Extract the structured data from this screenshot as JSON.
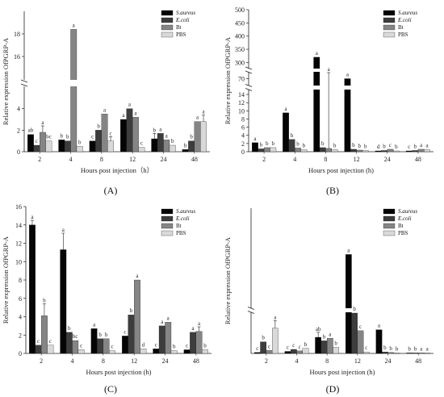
{
  "colors": {
    "S.aureus": "#050505",
    "E.coli": "#3d3d3d",
    "Bt": "#858585",
    "PBS": "#d9d9d9"
  },
  "chart_data": [
    {
      "panel": "A",
      "type": "bar",
      "panel_label": "(A)",
      "xlabel": "Hours post injection（h）",
      "ylabel": "Relative expression OfPGRP-A",
      "categories": [
        "2",
        "4",
        "8",
        "12",
        "24",
        "48"
      ],
      "legend_position": "top-right",
      "axis_break": true,
      "ylim_lower": [
        0,
        6
      ],
      "ylim_upper": [
        14,
        20
      ],
      "yticks_lower": [
        "0",
        "2",
        "4"
      ],
      "yticks_upper": [
        "16",
        "18"
      ],
      "series": [
        {
          "name": "S.aureus",
          "values": [
            1.6,
            1.1,
            1.0,
            3.0,
            1.2,
            0.2
          ],
          "errors": [
            0,
            0,
            0,
            0,
            0.5,
            0
          ],
          "labels": [
            "ab",
            "b",
            "c",
            "a",
            "b",
            "b"
          ]
        },
        {
          "name": "E.coli",
          "values": [
            0.6,
            1.0,
            2.0,
            4.0,
            1.7,
            1.0
          ],
          "errors": [
            0,
            0,
            0,
            0,
            0,
            0
          ],
          "labels": [
            "c",
            "b",
            "b",
            "a",
            "a",
            "b"
          ]
        },
        {
          "name": "Bt",
          "values": [
            1.8,
            18.4,
            3.5,
            3.2,
            1.1,
            2.8
          ],
          "errors": [
            0.6,
            0,
            0,
            0,
            0,
            0
          ],
          "labels": [
            "a",
            "a",
            "a",
            "a",
            "a",
            "a"
          ]
        },
        {
          "name": "PBS",
          "values": [
            1.0,
            0.5,
            1.0,
            0.4,
            0.6,
            2.8
          ],
          "errors": [
            0,
            0,
            0.4,
            0,
            0,
            0.6
          ],
          "labels": [
            "bc",
            "b",
            "c",
            "c",
            "b",
            "a"
          ]
        }
      ]
    },
    {
      "panel": "B",
      "type": "bar",
      "panel_label": "(B)",
      "xlabel": "Hours post injection (h)",
      "ylabel": "Relative expression OfPGRP-A",
      "categories": [
        "2",
        "4",
        "8",
        "12",
        "24",
        "48"
      ],
      "legend_position": "top-right",
      "axis_break": true,
      "ylim_lower": [
        0,
        15
      ],
      "ylim_middle": [
        60,
        80
      ],
      "ylim_upper": [
        280,
        500
      ],
      "yticks_lower": [
        "0",
        "2",
        "4",
        "6",
        "8",
        "10",
        "12",
        "14"
      ],
      "yticks_middle": [
        "70"
      ],
      "yticks_upper": [
        "300",
        "350",
        "400",
        "450",
        "500"
      ],
      "series": [
        {
          "name": "S.aureus",
          "values": [
            2.2,
            9.5,
            320,
            70,
            0.2,
            0.2
          ],
          "errors": [
            0,
            0,
            0,
            0,
            0,
            0
          ],
          "labels": [
            "a",
            "a",
            "a",
            "a",
            "d",
            "c"
          ]
        },
        {
          "name": "E.coli",
          "values": [
            0.7,
            3.0,
            1.0,
            0.6,
            0.3,
            0.3
          ],
          "errors": [
            0,
            0,
            0,
            0,
            0,
            0
          ],
          "labels": [
            "b",
            "b",
            "b",
            "b",
            "b",
            "b"
          ]
        },
        {
          "name": "Bt",
          "values": [
            1.0,
            0.9,
            0.8,
            0.4,
            0.6,
            0.6
          ],
          "errors": [
            0,
            0,
            140,
            0,
            0,
            0
          ],
          "labels": [
            "b",
            "b",
            "a",
            "b",
            "c",
            "a"
          ]
        },
        {
          "name": "PBS",
          "values": [
            1.0,
            0.5,
            0.5,
            0.3,
            0.2,
            0.5
          ],
          "errors": [
            0,
            0,
            0,
            0,
            0,
            0
          ],
          "labels": [
            "b",
            "b",
            "b",
            "b",
            "b",
            "a"
          ]
        }
      ]
    },
    {
      "panel": "C",
      "type": "bar",
      "panel_label": "(C)",
      "xlabel": "Hours post injection (h)",
      "ylabel": "Relative expression OfPGRP-A",
      "categories": [
        "2",
        "4",
        "8",
        "12",
        "24",
        "48"
      ],
      "legend_position": "top-right",
      "axis_break": false,
      "ylim": [
        0,
        16
      ],
      "yticks": [
        "0",
        "2",
        "4",
        "6",
        "8",
        "10",
        "12",
        "14",
        "16"
      ],
      "series": [
        {
          "name": "S.aureus",
          "values": [
            14.0,
            11.3,
            2.7,
            1.9,
            0.5,
            0.4
          ],
          "errors": [
            0.5,
            1.8,
            0,
            0,
            0,
            0
          ],
          "labels": [
            "a",
            "a",
            "a",
            "c",
            "c",
            "c"
          ]
        },
        {
          "name": "E.coli",
          "values": [
            0.9,
            2.3,
            1.6,
            4.2,
            3.0,
            2.3
          ],
          "errors": [
            0,
            0,
            0,
            0,
            0,
            0
          ],
          "labels": [
            "c",
            "b",
            "b",
            "b",
            "a",
            "a"
          ]
        },
        {
          "name": "Bt",
          "values": [
            4.1,
            1.4,
            1.6,
            8.0,
            3.4,
            2.4
          ],
          "errors": [
            1.3,
            0,
            0,
            0,
            0,
            0.5
          ],
          "labels": [
            "b",
            "bc",
            "b",
            "a",
            "a",
            "a"
          ]
        },
        {
          "name": "PBS",
          "values": [
            0.9,
            0.4,
            0.3,
            0.5,
            0.3,
            0.4
          ],
          "errors": [
            0,
            0,
            0,
            0,
            0,
            0
          ],
          "labels": [
            "c",
            "c",
            "c",
            "d",
            "b",
            "b"
          ]
        }
      ]
    },
    {
      "panel": "D",
      "type": "bar",
      "panel_label": "(D)",
      "xlabel": "Hours post injection (h)",
      "ylabel": "Relative expression OfPGRP-A",
      "categories": [
        "2",
        "4",
        "8",
        "12",
        "24",
        "48"
      ],
      "legend_position": "top-right",
      "axis_break": true,
      "ylim_lower": [
        0,
        8
      ],
      "ylim_upper": [
        40,
        70
      ],
      "series": [
        {
          "name": "S.aureus",
          "values": [
            0.2,
            0.4,
            3.2,
            56.0,
            4.7,
            0.1
          ],
          "errors": [
            0,
            0,
            1.0,
            0,
            0,
            0
          ],
          "labels": [
            "c",
            "c",
            "ab",
            "a",
            "a",
            "b"
          ]
        },
        {
          "name": "E.coli",
          "values": [
            2.3,
            0.8,
            2.5,
            8.5,
            0.3,
            0.1
          ],
          "errors": [
            0,
            0,
            0,
            0,
            0,
            0
          ],
          "labels": [
            "b",
            "c",
            "b",
            "b",
            "b",
            "b"
          ]
        },
        {
          "name": "Bt",
          "values": [
            0.6,
            0.5,
            3.0,
            4.5,
            0.2,
            0.1
          ],
          "errors": [
            0,
            0,
            0,
            0,
            0,
            0
          ],
          "labels": [
            "c",
            "c",
            "a",
            "c",
            "b",
            "a"
          ]
        },
        {
          "name": "PBS",
          "values": [
            5.0,
            1.0,
            1.2,
            0.3,
            0.1,
            0.1
          ],
          "errors": [
            1.5,
            0,
            0,
            0,
            0,
            0
          ],
          "labels": [
            "a",
            "b",
            "b",
            "c",
            "b",
            "a"
          ]
        }
      ]
    }
  ]
}
